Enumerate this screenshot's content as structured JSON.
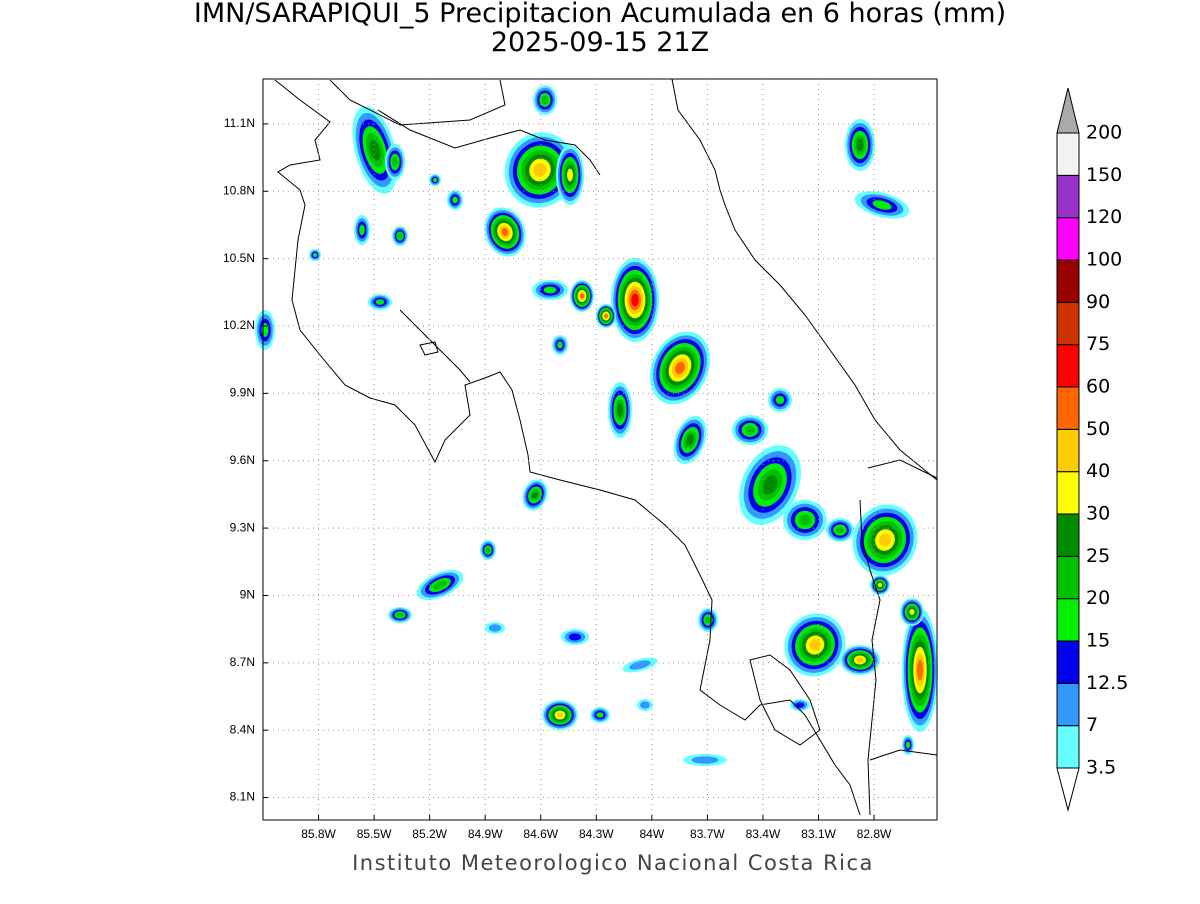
{
  "header": {
    "title": "IMN/SARAPIQUI_5 Precipitacion Acumulada en 6 horas (mm)",
    "subtitle": "2025-09-15 21Z"
  },
  "map": {
    "lonlim": [
      -86.1,
      -82.46
    ],
    "latlim": [
      8.0,
      11.3
    ],
    "grid": true,
    "lon_ticks": [
      {
        "value": -85.8,
        "label": "85.8W"
      },
      {
        "value": -85.5,
        "label": "85.5W"
      },
      {
        "value": -85.2,
        "label": "85.2W"
      },
      {
        "value": -84.9,
        "label": "84.9W"
      },
      {
        "value": -84.6,
        "label": "84.6W"
      },
      {
        "value": -84.3,
        "label": "84.3W"
      },
      {
        "value": -84,
        "label": "84W"
      },
      {
        "value": -83.7,
        "label": "83.7W"
      },
      {
        "value": -83.4,
        "label": "83.4W"
      },
      {
        "value": -83.1,
        "label": "83.1W"
      },
      {
        "value": -82.8,
        "label": "82.8W"
      }
    ],
    "lat_ticks": [
      {
        "value": 11.1,
        "label": "11.1N"
      },
      {
        "value": 10.8,
        "label": "10.8N"
      },
      {
        "value": 10.5,
        "label": "10.5N"
      },
      {
        "value": 10.2,
        "label": "10.2N"
      },
      {
        "value": 9.9,
        "label": "9.9N"
      },
      {
        "value": 9.6,
        "label": "9.6N"
      },
      {
        "value": 9.3,
        "label": "9.3N"
      },
      {
        "value": 9,
        "label": "9N"
      },
      {
        "value": 8.7,
        "label": "8.7N"
      },
      {
        "value": 8.4,
        "label": "8.4N"
      },
      {
        "value": 8.1,
        "label": "8.1N"
      }
    ]
  },
  "colorbar": {
    "levels": [
      3.5,
      7,
      12.5,
      15,
      20,
      25,
      30,
      40,
      50,
      60,
      75,
      90,
      100,
      120,
      150,
      200
    ],
    "under_color": "#ffffff",
    "over_color": "#aaaaaa",
    "colors": [
      "#66ffff",
      "#3399ff",
      "#0000ee",
      "#00ee00",
      "#00c000",
      "#008a00",
      "#ffff00",
      "#ffcc00",
      "#ff6600",
      "#ff0000",
      "#cc3300",
      "#990000",
      "#ff00ff",
      "#9933cc",
      "#f2f2f2"
    ]
  },
  "footer": "Instituto Meteorologico Nacional Costa Rica"
}
